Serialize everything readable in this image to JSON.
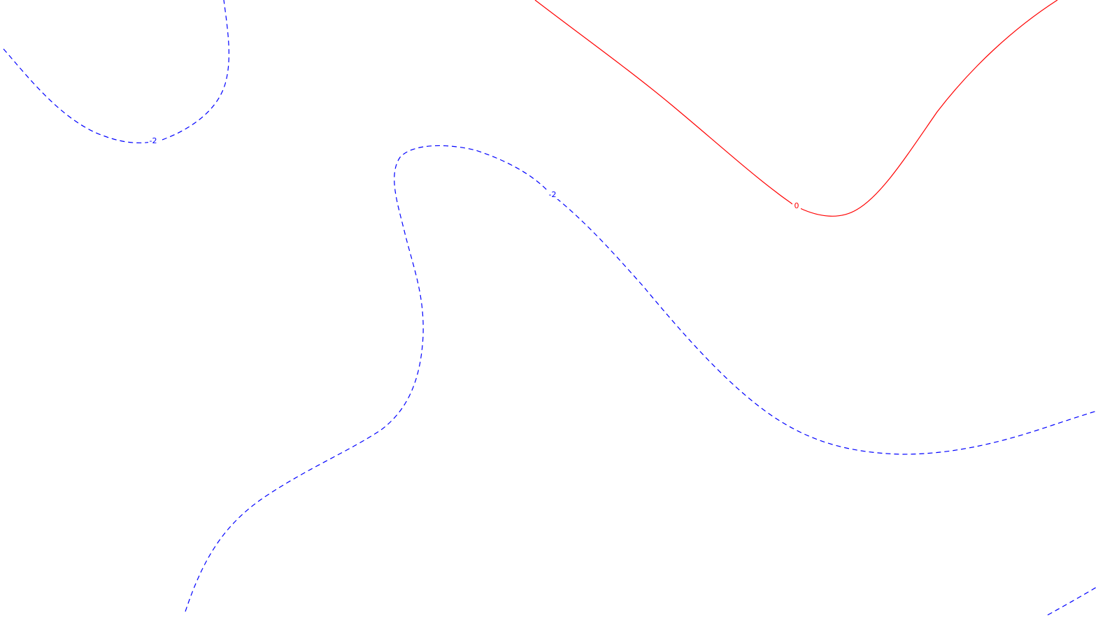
{
  "map": {
    "contours": [
      {
        "id": "dashed-upper-left",
        "level_label": "-2",
        "style": "dashed",
        "color": "#0000ff"
      },
      {
        "id": "dashed-center",
        "level_label": "-2",
        "style": "dashed",
        "color": "#0000ff"
      },
      {
        "id": "solid-zero",
        "level_label": "0",
        "style": "solid",
        "color": "#ff0000"
      },
      {
        "id": "dashed-bottom-right",
        "level_label": "",
        "style": "dashed",
        "color": "#0000ff"
      }
    ]
  }
}
